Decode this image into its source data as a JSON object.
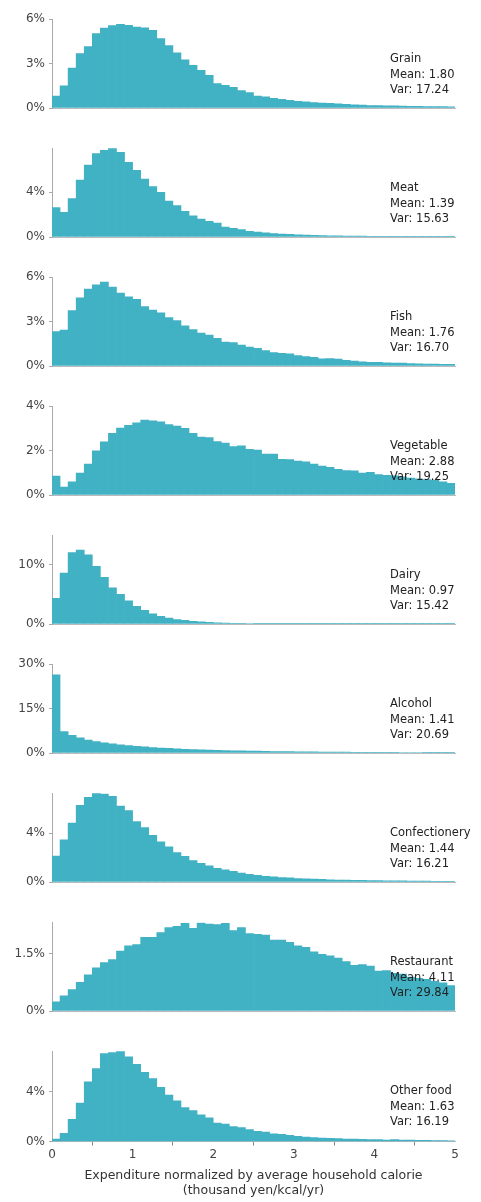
{
  "chart_data": [
    {
      "type": "histogram",
      "color": "#41b1c4",
      "bins": [
        0,
        0.1,
        0.2,
        0.3,
        0.4,
        0.5,
        0.6,
        0.7,
        0.8,
        0.9,
        1,
        1.1,
        1.2,
        1.3,
        1.4,
        1.5,
        1.6,
        1.7,
        1.8,
        1.9,
        2,
        2.1,
        2.2,
        2.3,
        2.4,
        2.5,
        2.6,
        2.7,
        2.8,
        2.9,
        3,
        3.1,
        3.2,
        3.3,
        3.4,
        3.5,
        3.6,
        3.7,
        3.8,
        3.9,
        4,
        4.1,
        4.2,
        4.3,
        4.4,
        4.5,
        4.6,
        4.7,
        4.8,
        4.9,
        5
      ],
      "values": [
        0.81,
        1.5,
        2.7,
        3.68,
        4.15,
        5.03,
        5.4,
        5.57,
        5.65,
        5.59,
        5.46,
        5.42,
        5.25,
        4.69,
        4.22,
        3.73,
        3.25,
        2.89,
        2.55,
        2.2,
        1.65,
        1.54,
        1.39,
        1.18,
        1.05,
        0.81,
        0.75,
        0.66,
        0.58,
        0.51,
        0.45,
        0.41,
        0.36,
        0.34,
        0.32,
        0.28,
        0.24,
        0.21,
        0.19,
        0.17,
        0.17,
        0.15,
        0.14,
        0.13,
        0.12,
        0.11,
        0.1,
        0.09,
        0.09,
        0.08
      ],
      "xlim": [
        0,
        5
      ],
      "xticks": [
        0,
        1,
        2,
        3,
        4,
        5
      ],
      "ylim": [
        0,
        6
      ],
      "yticks": [
        {
          "value": 0,
          "label": "0%"
        },
        {
          "value": 3,
          "label": "3%"
        },
        {
          "value": 6,
          "label": "6%"
        }
      ],
      "tick_labels": "y",
      "annotations": [
        "Grain",
        "Mean: 1.80",
        "Var: 17.24"
      ]
    },
    {
      "type": "histogram",
      "color": "#41b1c4",
      "bins": [
        0,
        0.1,
        0.2,
        0.3,
        0.4,
        0.5,
        0.6,
        0.7,
        0.8,
        0.9,
        1,
        1.1,
        1.2,
        1.3,
        1.4,
        1.5,
        1.6,
        1.7,
        1.8,
        1.9,
        2,
        2.1,
        2.2,
        2.3,
        2.4,
        2.5,
        2.6,
        2.7,
        2.8,
        2.9,
        3,
        3.1,
        3.2,
        3.3,
        3.4,
        3.5,
        3.6,
        3.7,
        3.8,
        3.9,
        4,
        4.1,
        4.2,
        4.3,
        4.4,
        4.5,
        4.6,
        4.7,
        4.8,
        4.9,
        5
      ],
      "values": [
        2.63,
        2.2,
        3.43,
        5.06,
        6.4,
        7.43,
        7.71,
        7.91,
        7.54,
        6.66,
        5.94,
        5.17,
        4.49,
        3.97,
        3.2,
        2.8,
        2.29,
        1.89,
        1.6,
        1.4,
        1.23,
        0.89,
        0.77,
        0.66,
        0.51,
        0.43,
        0.37,
        0.31,
        0.26,
        0.23,
        0.2,
        0.17,
        0.14,
        0.12,
        0.11,
        0.1,
        0.09,
        0.09,
        0.08,
        0.07,
        0.07,
        0.06,
        0.06,
        0.05,
        0.05,
        0.04,
        0.04,
        0.04,
        0.03,
        0.03
      ],
      "xlim": [
        0,
        5
      ],
      "xticks": [
        0,
        1,
        2,
        3,
        4,
        5
      ],
      "ylim": [
        0,
        7.91
      ],
      "yticks": [
        {
          "value": 0,
          "label": "0%"
        },
        {
          "value": 4,
          "label": "4%"
        }
      ],
      "tick_labels": "y",
      "annotations": [
        "Meat",
        "Mean: 1.39",
        "Var: 15.63"
      ]
    },
    {
      "type": "histogram",
      "color": "#41b1c4",
      "bins": [
        0,
        0.1,
        0.2,
        0.3,
        0.4,
        0.5,
        0.6,
        0.7,
        0.8,
        0.9,
        1,
        1.1,
        1.2,
        1.3,
        1.4,
        1.5,
        1.6,
        1.7,
        1.8,
        1.9,
        2,
        2.1,
        2.2,
        2.3,
        2.4,
        2.5,
        2.6,
        2.7,
        2.8,
        2.9,
        3,
        3.1,
        3.2,
        3.3,
        3.4,
        3.5,
        3.6,
        3.7,
        3.8,
        3.9,
        4,
        4.1,
        4.2,
        4.3,
        4.4,
        4.5,
        4.6,
        4.7,
        4.8,
        4.9,
        5
      ],
      "values": [
        2.33,
        2.43,
        3.74,
        4.61,
        5.2,
        5.48,
        5.67,
        5.33,
        4.93,
        4.67,
        4.5,
        4.02,
        3.78,
        3.59,
        3.28,
        3.07,
        2.72,
        2.46,
        2.22,
        2.09,
        1.87,
        1.61,
        1.59,
        1.41,
        1.28,
        1.2,
        1.04,
        0.91,
        0.85,
        0.83,
        0.7,
        0.63,
        0.59,
        0.48,
        0.5,
        0.46,
        0.39,
        0.33,
        0.28,
        0.24,
        0.24,
        0.22,
        0.2,
        0.2,
        0.17,
        0.15,
        0.13,
        0.13,
        0.11,
        0.11
      ],
      "xlim": [
        0,
        5
      ],
      "xticks": [
        0,
        1,
        2,
        3,
        4,
        5
      ],
      "ylim": [
        0,
        6
      ],
      "yticks": [
        {
          "value": 0,
          "label": "0%"
        },
        {
          "value": 3,
          "label": "3%"
        },
        {
          "value": 6,
          "label": "6%"
        }
      ],
      "tick_labels": "y",
      "annotations": [
        "Fish",
        "Mean: 1.76",
        "Var: 16.70"
      ]
    },
    {
      "type": "histogram",
      "color": "#41b1c4",
      "bins": [
        0,
        0.1,
        0.2,
        0.3,
        0.4,
        0.5,
        0.6,
        0.7,
        0.8,
        0.9,
        1,
        1.1,
        1.2,
        1.3,
        1.4,
        1.5,
        1.6,
        1.7,
        1.8,
        1.9,
        2,
        2.1,
        2.2,
        2.3,
        2.4,
        2.5,
        2.6,
        2.7,
        2.8,
        2.9,
        3,
        3.1,
        3.2,
        3.3,
        3.4,
        3.5,
        3.6,
        3.7,
        3.8,
        3.9,
        4,
        4.1,
        4.2,
        4.3,
        4.4,
        4.5,
        4.6,
        4.7,
        4.8,
        4.9,
        5
      ],
      "values": [
        0.85,
        0.36,
        0.59,
        0.99,
        1.39,
        1.99,
        2.39,
        2.78,
        3.01,
        3.14,
        3.25,
        3.37,
        3.34,
        3.3,
        3.17,
        3.1,
        3.0,
        2.78,
        2.61,
        2.59,
        2.41,
        2.34,
        2.18,
        2.21,
        2.06,
        2.02,
        1.84,
        1.84,
        1.61,
        1.59,
        1.53,
        1.49,
        1.39,
        1.3,
        1.25,
        1.16,
        1.1,
        1.09,
        0.99,
        1.02,
        0.92,
        0.89,
        0.86,
        0.82,
        0.76,
        0.73,
        0.7,
        0.67,
        0.59,
        0.53
      ],
      "xlim": [
        0,
        5
      ],
      "xticks": [
        0,
        1,
        2,
        3,
        4,
        5
      ],
      "ylim": [
        0,
        4
      ],
      "yticks": [
        {
          "value": 0,
          "label": "0%"
        },
        {
          "value": 2,
          "label": "2%"
        },
        {
          "value": 4,
          "label": "4%"
        }
      ],
      "tick_labels": "y",
      "annotations": [
        "Vegetable",
        "Mean: 2.88",
        "Var: 19.25"
      ]
    },
    {
      "type": "histogram",
      "color": "#41b1c4",
      "bins": [
        0,
        0.1,
        0.2,
        0.3,
        0.4,
        0.5,
        0.6,
        0.7,
        0.8,
        0.9,
        1,
        1.1,
        1.2,
        1.3,
        1.4,
        1.5,
        1.6,
        1.7,
        1.8,
        1.9,
        2,
        2.1,
        2.2,
        2.3,
        2.4,
        2.5,
        2.6,
        2.7,
        2.8,
        2.9,
        3,
        3.1,
        3.2,
        3.3,
        3.4,
        3.5,
        3.6,
        3.7,
        3.8,
        3.9,
        4,
        4.1,
        4.2,
        4.3,
        4.4,
        4.5,
        4.6,
        4.7,
        4.8,
        4.9,
        5
      ],
      "values": [
        4.32,
        8.59,
        12.05,
        12.49,
        11.68,
        9.73,
        7.89,
        6.11,
        5.03,
        3.9,
        2.97,
        2.3,
        1.73,
        1.3,
        1.0,
        0.76,
        0.6,
        0.45,
        0.35,
        0.27,
        0.2,
        0.16,
        0.13,
        0.1,
        0.08,
        0.07,
        0.07,
        0.06,
        0.06,
        0.05,
        0.05,
        0.05,
        0.04,
        0.04,
        0.04,
        0.04,
        0.03,
        0.03,
        0.03,
        0.03,
        0.03,
        0.03,
        0.02,
        0.02,
        0.02,
        0.02,
        0.02,
        0.02,
        0.02,
        0.02
      ],
      "xlim": [
        0,
        5
      ],
      "xticks": [
        0,
        1,
        2,
        3,
        4,
        5
      ],
      "ylim": [
        0,
        15
      ],
      "yticks": [
        {
          "value": 0,
          "label": "0%"
        },
        {
          "value": 10,
          "label": "10%"
        }
      ],
      "tick_labels": "y",
      "annotations": [
        "Dairy",
        "Mean: 0.97",
        "Var: 15.42"
      ]
    },
    {
      "type": "histogram",
      "color": "#41b1c4",
      "bins": [
        0,
        0.1,
        0.2,
        0.3,
        0.4,
        0.5,
        0.6,
        0.7,
        0.8,
        0.9,
        1,
        1.1,
        1.2,
        1.3,
        1.4,
        1.5,
        1.6,
        1.7,
        1.8,
        1.9,
        2,
        2.1,
        2.2,
        2.3,
        2.4,
        2.5,
        2.6,
        2.7,
        2.8,
        2.9,
        3,
        3.1,
        3.2,
        3.3,
        3.4,
        3.5,
        3.6,
        3.7,
        3.8,
        3.9,
        4,
        4.1,
        4.2,
        4.3,
        4.4,
        4.5,
        4.6,
        4.7,
        4.8,
        4.9,
        5
      ],
      "values": [
        26.4,
        7.2,
        6.0,
        5.1,
        4.4,
        3.9,
        3.45,
        3.1,
        2.8,
        2.5,
        2.25,
        2.05,
        1.85,
        1.7,
        1.55,
        1.4,
        1.28,
        1.17,
        1.07,
        0.98,
        0.9,
        0.83,
        0.77,
        0.71,
        0.66,
        0.61,
        0.56,
        0.52,
        0.48,
        0.45,
        0.42,
        0.39,
        0.36,
        0.34,
        0.32,
        0.3,
        0.28,
        0.26,
        0.24,
        0.23,
        0.22,
        0.2,
        0.19,
        0.18,
        0.17,
        0.16,
        0.15,
        0.14,
        0.13,
        0.12
      ],
      "xlim": [
        0,
        5
      ],
      "xticks": [
        0,
        1,
        2,
        3,
        4,
        5
      ],
      "ylim": [
        0,
        30
      ],
      "yticks": [
        {
          "value": 0,
          "label": "0%"
        },
        {
          "value": 15,
          "label": "15%"
        },
        {
          "value": 30,
          "label": "30%"
        }
      ],
      "tick_labels": "y",
      "annotations": [
        "Alcohol",
        "Mean: 1.41",
        "Var: 20.69"
      ]
    },
    {
      "type": "histogram",
      "color": "#41b1c4",
      "bins": [
        0,
        0.1,
        0.2,
        0.3,
        0.4,
        0.5,
        0.6,
        0.7,
        0.8,
        0.9,
        1,
        1.1,
        1.2,
        1.3,
        1.4,
        1.5,
        1.6,
        1.7,
        1.8,
        1.9,
        2,
        2.1,
        2.2,
        2.3,
        2.4,
        2.5,
        2.6,
        2.7,
        2.8,
        2.9,
        3,
        3.1,
        3.2,
        3.3,
        3.4,
        3.5,
        3.6,
        3.7,
        3.8,
        3.9,
        4,
        4.1,
        4.2,
        4.3,
        4.4,
        4.5,
        4.6,
        4.7,
        4.8,
        4.9,
        5
      ],
      "values": [
        2.13,
        3.47,
        4.84,
        6.29,
        6.95,
        7.29,
        7.21,
        7.03,
        6.24,
        5.87,
        4.95,
        4.47,
        3.84,
        3.29,
        2.89,
        2.42,
        2.11,
        1.76,
        1.53,
        1.32,
        1.13,
        1.0,
        0.87,
        0.74,
        0.63,
        0.55,
        0.47,
        0.42,
        0.37,
        0.34,
        0.29,
        0.26,
        0.24,
        0.21,
        0.18,
        0.16,
        0.15,
        0.14,
        0.13,
        0.12,
        0.11,
        0.1,
        0.1,
        0.09,
        0.08,
        0.08,
        0.07,
        0.06,
        0.06,
        0.05
      ],
      "xlim": [
        0,
        5
      ],
      "xticks": [
        0,
        1,
        2,
        3,
        4,
        5
      ],
      "ylim": [
        0,
        7.29
      ],
      "yticks": [
        {
          "value": 0,
          "label": "0%"
        },
        {
          "value": 4,
          "label": "4%"
        }
      ],
      "tick_labels": "y",
      "annotations": [
        "Confectionery",
        "Mean: 1.44",
        "Var: 16.21"
      ]
    },
    {
      "type": "histogram",
      "color": "#41b1c4",
      "bins": [
        0,
        0.1,
        0.2,
        0.3,
        0.4,
        0.5,
        0.6,
        0.7,
        0.8,
        0.9,
        1,
        1.1,
        1.2,
        1.3,
        1.4,
        1.5,
        1.6,
        1.7,
        1.8,
        1.9,
        2,
        2.1,
        2.2,
        2.3,
        2.4,
        2.5,
        2.6,
        2.7,
        2.8,
        2.9,
        3,
        3.1,
        3.2,
        3.3,
        3.4,
        3.5,
        3.6,
        3.7,
        3.8,
        3.9,
        4,
        4.1,
        4.2,
        4.3,
        4.4,
        4.5,
        4.6,
        4.7,
        4.8,
        4.9,
        5
      ],
      "values": [
        0.24,
        0.4,
        0.56,
        0.75,
        0.95,
        1.13,
        1.27,
        1.35,
        1.57,
        1.71,
        1.74,
        1.93,
        1.93,
        2.06,
        2.19,
        2.22,
        2.3,
        2.17,
        2.31,
        2.28,
        2.27,
        2.3,
        2.11,
        2.19,
        2.03,
        2.01,
        1.99,
        1.86,
        1.86,
        1.8,
        1.71,
        1.67,
        1.55,
        1.49,
        1.45,
        1.39,
        1.3,
        1.2,
        1.22,
        1.18,
        1.05,
        1.06,
        0.99,
        0.97,
        0.89,
        0.86,
        0.83,
        0.78,
        0.74,
        0.67
      ],
      "xlim": [
        0,
        5
      ],
      "xticks": [
        0,
        1,
        2,
        3,
        4,
        5
      ],
      "ylim": [
        0,
        2.33
      ],
      "yticks": [
        {
          "value": 0,
          "label": "0%"
        },
        {
          "value": 1.5,
          "label": "1.5%"
        }
      ],
      "tick_labels": "y",
      "annotations": [
        "Restaurant",
        "Mean: 4.11",
        "Var: 29.84"
      ]
    },
    {
      "type": "histogram",
      "color": "#41b1c4",
      "bins": [
        0,
        0.1,
        0.2,
        0.3,
        0.4,
        0.5,
        0.6,
        0.7,
        0.8,
        0.9,
        1,
        1.1,
        1.2,
        1.3,
        1.4,
        1.5,
        1.6,
        1.7,
        1.8,
        1.9,
        2,
        2.1,
        2.2,
        2.3,
        2.4,
        2.5,
        2.6,
        2.7,
        2.8,
        2.9,
        3,
        3.1,
        3.2,
        3.3,
        3.4,
        3.5,
        3.6,
        3.7,
        3.8,
        3.9,
        4,
        4.1,
        4.2,
        4.3,
        4.4,
        4.5,
        4.6,
        4.7,
        4.8,
        4.9,
        5
      ],
      "values": [
        0.21,
        0.66,
        1.79,
        3.11,
        4.82,
        5.89,
        7.1,
        7.18,
        7.29,
        6.84,
        6.24,
        5.58,
        5.08,
        4.37,
        3.76,
        3.29,
        2.74,
        2.5,
        2.16,
        1.92,
        1.5,
        1.42,
        1.21,
        1.13,
        0.97,
        0.82,
        0.76,
        0.63,
        0.58,
        0.5,
        0.42,
        0.37,
        0.32,
        0.29,
        0.26,
        0.24,
        0.21,
        0.21,
        0.18,
        0.16,
        0.16,
        0.13,
        0.16,
        0.13,
        0.12,
        0.11,
        0.1,
        0.09,
        0.08,
        0.07
      ],
      "xlim": [
        0,
        5
      ],
      "xticks": [
        0,
        1,
        2,
        3,
        4,
        5
      ],
      "ylim": [
        0,
        7.29
      ],
      "yticks": [
        {
          "value": 0,
          "label": "0%"
        },
        {
          "value": 4,
          "label": "4%"
        }
      ],
      "xlabel": "Expenditure normalized by average household calorie (thousand yen/kcal/yr)",
      "annotations": [
        "Other food",
        "Mean: 1.63",
        "Var: 16.19"
      ]
    }
  ]
}
